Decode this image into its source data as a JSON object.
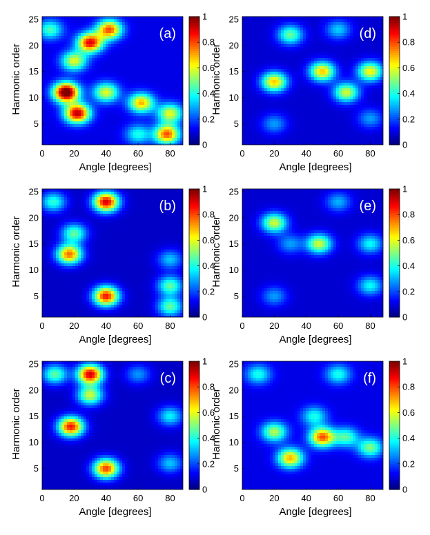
{
  "chart_data": [
    {
      "type": "heatmap",
      "panel_label": "(a)",
      "xlabel": "Angle [degrees]",
      "ylabel": "Harmonic order",
      "xlim": [
        0,
        88
      ],
      "ylim": [
        1,
        25.5
      ],
      "xticks": [
        0,
        20,
        40,
        60,
        80
      ],
      "yticks": [
        5,
        10,
        15,
        20,
        25
      ],
      "colorbar": {
        "ticks": [
          0,
          0.2,
          0.4,
          0.6,
          0.8,
          1
        ],
        "tick_labels": [
          "0",
          "0.2",
          "0.4",
          "0.6",
          "0.8",
          "1"
        ],
        "range": [
          0,
          1
        ],
        "colormap": "jet"
      },
      "background_level": 0.1,
      "peaks": [
        {
          "angle": 15,
          "order": 11,
          "value": 1.0
        },
        {
          "angle": 22,
          "order": 7,
          "value": 0.85
        },
        {
          "angle": 30,
          "order": 20.5,
          "value": 0.8
        },
        {
          "angle": 42,
          "order": 23,
          "value": 0.7
        },
        {
          "angle": 20,
          "order": 17,
          "value": 0.5
        },
        {
          "angle": 40,
          "order": 11,
          "value": 0.5
        },
        {
          "angle": 62,
          "order": 9,
          "value": 0.6
        },
        {
          "angle": 78,
          "order": 3,
          "value": 0.7
        },
        {
          "angle": 80,
          "order": 7,
          "value": 0.5
        },
        {
          "angle": 60,
          "order": 3,
          "value": 0.3
        },
        {
          "angle": 5,
          "order": 23,
          "value": 0.35
        }
      ]
    },
    {
      "type": "heatmap",
      "panel_label": "(b)",
      "xlabel": "Angle [degrees]",
      "ylabel": "Harmonic order",
      "xlim": [
        0,
        88
      ],
      "ylim": [
        1,
        25.5
      ],
      "xticks": [
        0,
        20,
        40,
        60,
        80
      ],
      "yticks": [
        5,
        10,
        15,
        20,
        25
      ],
      "colorbar": {
        "ticks": [
          0,
          0.2,
          0.4,
          0.6,
          0.8,
          1
        ],
        "tick_labels": [
          "0",
          "0.2",
          "0.4",
          "0.6",
          "0.8",
          "1"
        ],
        "range": [
          0,
          1
        ],
        "colormap": "jet"
      },
      "background_level": 0.07,
      "peaks": [
        {
          "angle": 40,
          "order": 23,
          "value": 0.85
        },
        {
          "angle": 40,
          "order": 5,
          "value": 0.8
        },
        {
          "angle": 17,
          "order": 13,
          "value": 0.7
        },
        {
          "angle": 20,
          "order": 17,
          "value": 0.4
        },
        {
          "angle": 7,
          "order": 23,
          "value": 0.35
        },
        {
          "angle": 80,
          "order": 7,
          "value": 0.4
        },
        {
          "angle": 80,
          "order": 3,
          "value": 0.4
        },
        {
          "angle": 80,
          "order": 12,
          "value": 0.25
        }
      ]
    },
    {
      "type": "heatmap",
      "panel_label": "(c)",
      "xlabel": "Angle [degrees]",
      "ylabel": "Harmonic order",
      "xlim": [
        0,
        88
      ],
      "ylim": [
        1,
        25.5
      ],
      "xticks": [
        0,
        20,
        40,
        60,
        80
      ],
      "yticks": [
        5,
        10,
        15,
        20,
        25
      ],
      "colorbar": {
        "ticks": [
          0,
          0.2,
          0.4,
          0.6,
          0.8,
          1
        ],
        "tick_labels": [
          "0",
          "0.2",
          "0.4",
          "0.6",
          "0.8",
          "1"
        ],
        "range": [
          0,
          1
        ],
        "colormap": "jet"
      },
      "background_level": 0.07,
      "peaks": [
        {
          "angle": 30,
          "order": 23,
          "value": 0.85
        },
        {
          "angle": 18,
          "order": 13,
          "value": 0.8
        },
        {
          "angle": 40,
          "order": 5,
          "value": 0.75
        },
        {
          "angle": 30,
          "order": 19,
          "value": 0.5
        },
        {
          "angle": 8,
          "order": 23,
          "value": 0.4
        },
        {
          "angle": 80,
          "order": 15,
          "value": 0.3
        },
        {
          "angle": 80,
          "order": 6,
          "value": 0.25
        },
        {
          "angle": 60,
          "order": 23,
          "value": 0.2
        }
      ]
    },
    {
      "type": "heatmap",
      "panel_label": "(d)",
      "xlabel": "Angle [degrees]",
      "ylabel": "Harmonic order",
      "xlim": [
        0,
        88
      ],
      "ylim": [
        1,
        25.5
      ],
      "xticks": [
        0,
        20,
        40,
        60,
        80
      ],
      "yticks": [
        5,
        10,
        15,
        20,
        25
      ],
      "colorbar": {
        "ticks": [
          0,
          0.2,
          0.4,
          0.6,
          0.8,
          1
        ],
        "tick_labels": [
          "0",
          "0.2",
          "0.4",
          "0.6",
          "0.8",
          "1"
        ],
        "range": [
          0,
          1
        ],
        "colormap": "jet"
      },
      "background_level": 0.08,
      "peaks": [
        {
          "angle": 20,
          "order": 13,
          "value": 0.6
        },
        {
          "angle": 50,
          "order": 15,
          "value": 0.6
        },
        {
          "angle": 80,
          "order": 15,
          "value": 0.55
        },
        {
          "angle": 65,
          "order": 11,
          "value": 0.5
        },
        {
          "angle": 30,
          "order": 22,
          "value": 0.4
        },
        {
          "angle": 60,
          "order": 23,
          "value": 0.25
        },
        {
          "angle": 20,
          "order": 5,
          "value": 0.2
        },
        {
          "angle": 80,
          "order": 6,
          "value": 0.2
        }
      ]
    },
    {
      "type": "heatmap",
      "panel_label": "(e)",
      "xlabel": "Angle [degrees]",
      "ylabel": "Harmonic order",
      "xlim": [
        0,
        88
      ],
      "ylim": [
        1,
        25.5
      ],
      "xticks": [
        0,
        20,
        40,
        60,
        80
      ],
      "yticks": [
        5,
        10,
        15,
        20,
        25
      ],
      "colorbar": {
        "ticks": [
          0,
          0.2,
          0.4,
          0.6,
          0.8,
          1
        ],
        "tick_labels": [
          "0",
          "0.2",
          "0.4",
          "0.6",
          "0.8",
          "1"
        ],
        "range": [
          0,
          1
        ],
        "colormap": "jet"
      },
      "background_level": 0.08,
      "peaks": [
        {
          "angle": 20,
          "order": 19,
          "value": 0.5
        },
        {
          "angle": 48,
          "order": 15,
          "value": 0.5
        },
        {
          "angle": 80,
          "order": 15,
          "value": 0.3
        },
        {
          "angle": 80,
          "order": 7,
          "value": 0.3
        },
        {
          "angle": 20,
          "order": 5,
          "value": 0.2
        },
        {
          "angle": 60,
          "order": 23,
          "value": 0.22
        },
        {
          "angle": 30,
          "order": 15,
          "value": 0.2
        }
      ]
    },
    {
      "type": "heatmap",
      "panel_label": "(f)",
      "xlabel": "Angle [degrees]",
      "ylabel": "Harmonic order",
      "xlim": [
        0,
        88
      ],
      "ylim": [
        1,
        25.5
      ],
      "xticks": [
        0,
        20,
        40,
        60,
        80
      ],
      "yticks": [
        5,
        10,
        15,
        20,
        25
      ],
      "colorbar": {
        "ticks": [
          0,
          0.2,
          0.4,
          0.6,
          0.8,
          1
        ],
        "tick_labels": [
          "0",
          "0.2",
          "0.4",
          "0.6",
          "0.8",
          "1"
        ],
        "range": [
          0,
          1
        ],
        "colormap": "jet"
      },
      "background_level": 0.1,
      "peaks": [
        {
          "angle": 50,
          "order": 11,
          "value": 0.7
        },
        {
          "angle": 30,
          "order": 7,
          "value": 0.6
        },
        {
          "angle": 20,
          "order": 12,
          "value": 0.45
        },
        {
          "angle": 80,
          "order": 9,
          "value": 0.4
        },
        {
          "angle": 65,
          "order": 11,
          "value": 0.35
        },
        {
          "angle": 45,
          "order": 15,
          "value": 0.3
        },
        {
          "angle": 10,
          "order": 23,
          "value": 0.3
        },
        {
          "angle": 60,
          "order": 23,
          "value": 0.3
        }
      ]
    }
  ]
}
